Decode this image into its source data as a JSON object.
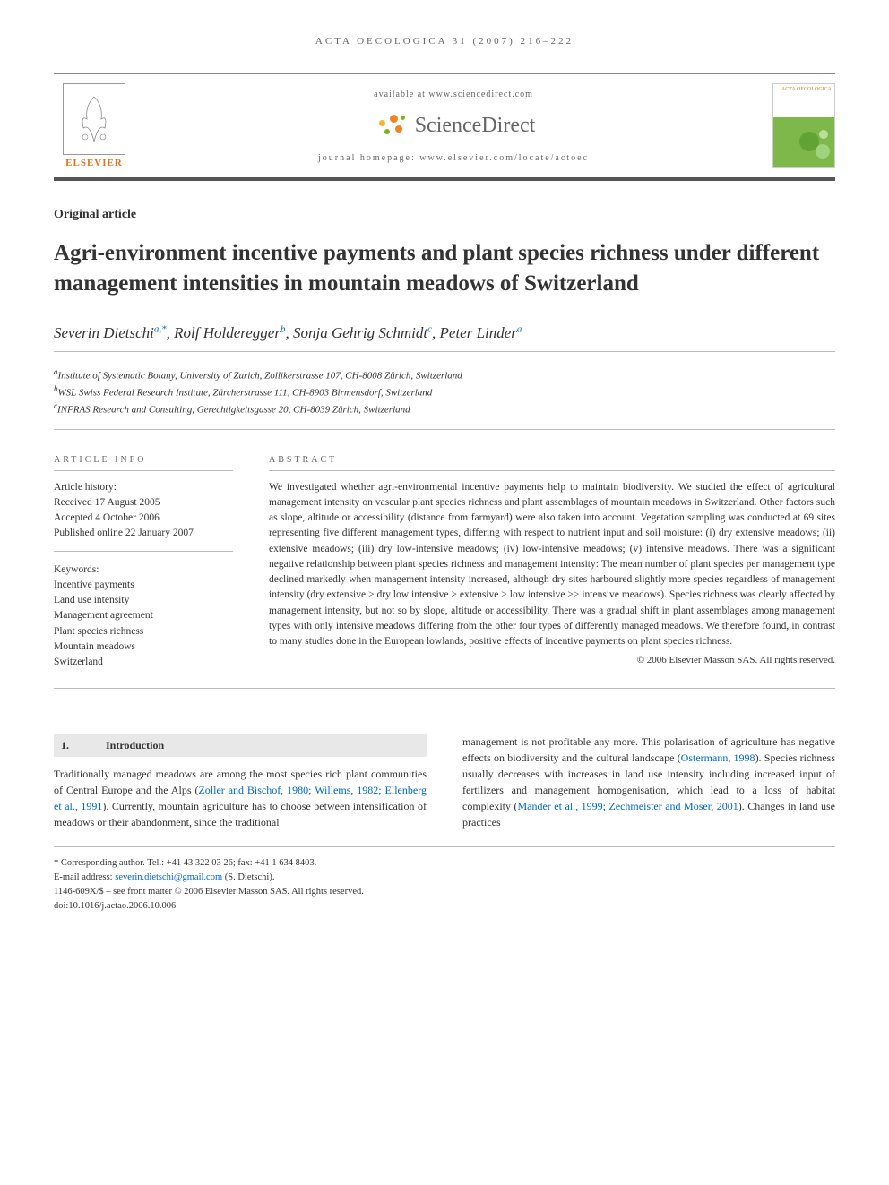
{
  "header": {
    "citation": "ACTA OECOLOGICA 31 (2007) 216–222",
    "available_at": "available at www.sciencedirect.com",
    "sciencedirect": "ScienceDirect",
    "homepage": "journal homepage: www.elsevier.com/locate/actoec",
    "elsevier": "ELSEVIER",
    "journal_cover_title": "ACTA OECOLOGICA"
  },
  "article": {
    "type": "Original article",
    "title": "Agri-environment incentive payments and plant species richness under different management intensities in mountain meadows of Switzerland"
  },
  "authors": [
    {
      "name": "Severin Dietschi",
      "sup": "a,*"
    },
    {
      "name": "Rolf Holderegger",
      "sup": "b"
    },
    {
      "name": "Sonja Gehrig Schmidt",
      "sup": "c"
    },
    {
      "name": "Peter Linder",
      "sup": "a"
    }
  ],
  "affiliations": [
    {
      "sup": "a",
      "text": "Institute of Systematic Botany, University of Zurich, Zollikerstrasse 107, CH-8008 Zürich, Switzerland"
    },
    {
      "sup": "b",
      "text": "WSL Swiss Federal Research Institute, Zürcherstrasse 111, CH-8903 Birmensdorf, Switzerland"
    },
    {
      "sup": "c",
      "text": "INFRAS Research and Consulting, Gerechtigkeitsgasse 20, CH-8039 Zürich, Switzerland"
    }
  ],
  "info": {
    "heading": "ARTICLE INFO",
    "history_label": "Article history:",
    "received": "Received 17 August 2005",
    "accepted": "Accepted 4 October 2006",
    "published": "Published online 22 January 2007",
    "keywords_label": "Keywords:",
    "keywords": [
      "Incentive payments",
      "Land use intensity",
      "Management agreement",
      "Plant species richness",
      "Mountain meadows",
      "Switzerland"
    ]
  },
  "abstract": {
    "heading": "ABSTRACT",
    "text": "We investigated whether agri-environmental incentive payments help to maintain biodiversity. We studied the effect of agricultural management intensity on vascular plant species richness and plant assemblages of mountain meadows in Switzerland. Other factors such as slope, altitude or accessibility (distance from farmyard) were also taken into account. Vegetation sampling was conducted at 69 sites representing five different management types, differing with respect to nutrient input and soil moisture: (i) dry extensive meadows; (ii) extensive meadows; (iii) dry low-intensive meadows; (iv) low-intensive meadows; (v) intensive meadows. There was a significant negative relationship between plant species richness and management intensity: The mean number of plant species per management type declined markedly when management intensity increased, although dry sites harboured slightly more species regardless of management intensity (dry extensive > dry low intensive > extensive > low intensive >> intensive meadows). Species richness was clearly affected by management intensity, but not so by slope, altitude or accessibility. There was a gradual shift in plant assemblages among management types with only intensive meadows differing from the other four types of differently managed meadows. We therefore found, in contrast to many studies done in the European lowlands, positive effects of incentive payments on plant species richness.",
    "copyright": "© 2006 Elsevier Masson SAS. All rights reserved."
  },
  "intro": {
    "num": "1.",
    "heading": "Introduction",
    "col1_pre": "Traditionally managed meadows are among the most species rich plant communities of Central Europe and the Alps (",
    "col1_link": "Zoller and Bischof, 1980; Willems, 1982; Ellenberg et al., 1991",
    "col1_post": "). Currently, mountain agriculture has to choose between intensification of meadows or their abandonment, since the traditional",
    "col2_pre": "management is not profitable any more. This polarisation of agriculture has negative effects on biodiversity and the cultural landscape (",
    "col2_link1": "Ostermann, 1998",
    "col2_mid": "). Species richness usually decreases with increases in land use intensity including increased input of fertilizers and management homogenisation, which lead to a loss of habitat complexity (",
    "col2_link2": "Mander et al., 1999; Zechmeister and Moser, 2001",
    "col2_end": "). Changes in land use practices"
  },
  "footer": {
    "corresponding": "* Corresponding author. Tel.: +41 43 322 03 26; fax: +41 1 634 8403.",
    "email_label": "E-mail address: ",
    "email": "severin.dietschi@gmail.com",
    "email_suffix": " (S. Dietschi).",
    "issn": "1146-609X/$ – see front matter © 2006 Elsevier Masson SAS. All rights reserved.",
    "doi": "doi:10.1016/j.actao.2006.10.006"
  },
  "colors": {
    "link": "#0066cc",
    "elsevier_orange": "#e9711c",
    "text": "#333333",
    "muted": "#666666",
    "rule": "#bbbbbb",
    "green": "#7fb84a",
    "sd_orange": "#f58220",
    "sd_yellow": "#f9b233",
    "sd_green": "#7ab51d"
  }
}
